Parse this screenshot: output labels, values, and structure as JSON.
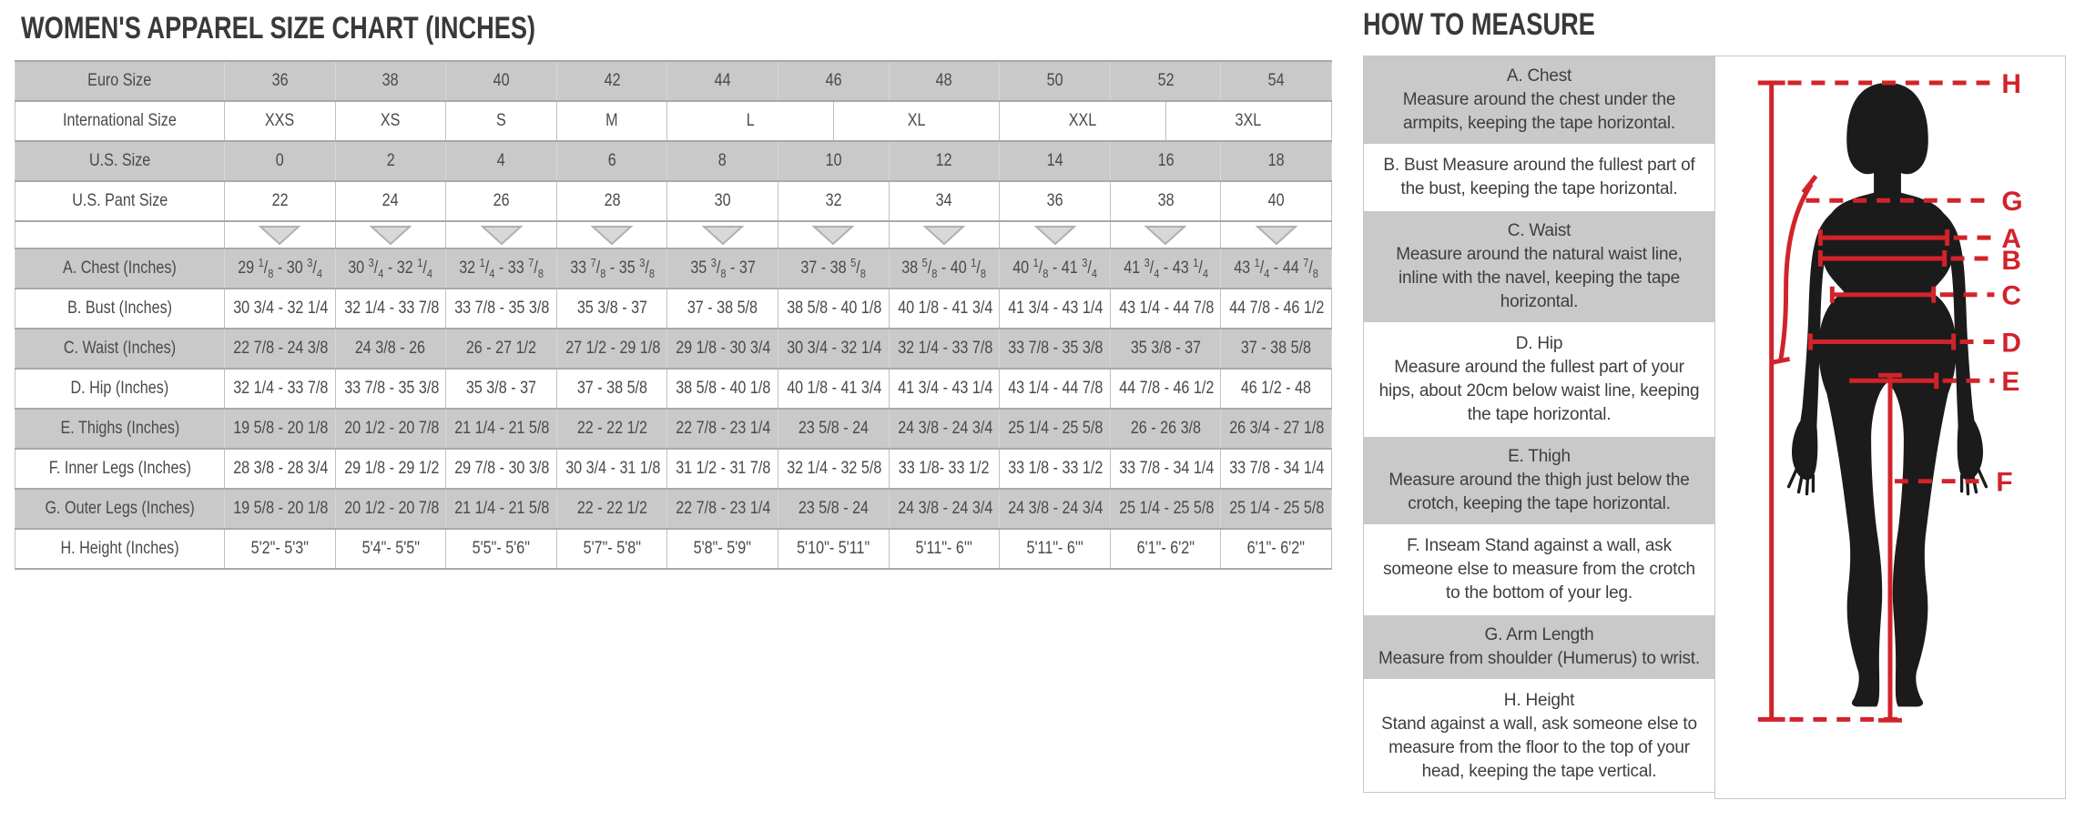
{
  "colors": {
    "row_gray": "#c9c9c9",
    "border_gray": "#a9a9a9",
    "accent_red": "#d2232a",
    "silhouette_black": "#1b1b1b",
    "text_dark": "#3e3e3e"
  },
  "size_chart": {
    "title": "WOMEN'S APPAREL SIZE CHART (INCHES)",
    "rows": [
      {
        "label": "Euro Size",
        "type": "data",
        "shade": "gray",
        "values": [
          "36",
          "38",
          "40",
          "42",
          "44",
          "46",
          "48",
          "50",
          "52",
          "54"
        ]
      },
      {
        "label": "International Size",
        "type": "data",
        "shade": "white",
        "values": [
          "XXS",
          "XS",
          "S",
          "M",
          "L",
          "XL",
          "XXL",
          "3XL"
        ],
        "spans": [
          2,
          2,
          2,
          2,
          3,
          3,
          3,
          3
        ]
      },
      {
        "label": "U.S. Size",
        "type": "data",
        "shade": "gray",
        "values": [
          "0",
          "2",
          "4",
          "6",
          "8",
          "10",
          "12",
          "14",
          "16",
          "18"
        ]
      },
      {
        "label": "U.S. Pant Size",
        "type": "data",
        "shade": "white",
        "values": [
          "22",
          "24",
          "26",
          "28",
          "30",
          "32",
          "34",
          "36",
          "38",
          "40"
        ]
      },
      {
        "label": "",
        "type": "arrows",
        "shade": "white",
        "arrow_count": 10
      },
      {
        "label": "A. Chest (Inches)",
        "type": "data",
        "shade": "gray",
        "fractions": true,
        "values": [
          "29 1/8 - 30 3/4",
          "30 3/4 - 32 1/4",
          "32 1/4 - 33 7/8",
          "33 7/8 - 35 3/8",
          "35 3/8 - 37",
          "37 - 38 5/8",
          "38 5/8 - 40 1/8",
          "40 1/8 - 41 3/4",
          "41 3/4 - 43 1/4",
          "43 1/4 - 44 7/8"
        ]
      },
      {
        "label": "B. Bust (Inches)",
        "type": "data",
        "shade": "white",
        "values": [
          "30 3/4 - 32 1/4",
          "32 1/4 - 33 7/8",
          "33 7/8 - 35 3/8",
          "35 3/8 - 37",
          "37 - 38 5/8",
          "38 5/8 - 40 1/8",
          "40 1/8 - 41 3/4",
          "41 3/4 - 43 1/4",
          "43 1/4 - 44 7/8",
          "44 7/8 - 46 1/2"
        ]
      },
      {
        "label": "C. Waist (Inches)",
        "type": "data",
        "shade": "gray",
        "values": [
          "22 7/8 - 24 3/8",
          "24 3/8 - 26",
          "26 - 27 1/2",
          "27 1/2 - 29 1/8",
          "29 1/8 - 30 3/4",
          "30 3/4 - 32 1/4",
          "32 1/4 - 33 7/8",
          "33 7/8 - 35 3/8",
          "35 3/8 - 37",
          "37 - 38 5/8"
        ]
      },
      {
        "label": "D. Hip (Inches)",
        "type": "data",
        "shade": "white",
        "values": [
          "32 1/4 - 33 7/8",
          "33 7/8 - 35 3/8",
          "35 3/8 - 37",
          "37 - 38 5/8",
          "38 5/8 - 40 1/8",
          "40 1/8 - 41 3/4",
          "41 3/4 - 43 1/4",
          "43 1/4 - 44 7/8",
          "44 7/8 - 46 1/2",
          "46 1/2 - 48"
        ]
      },
      {
        "label": "E. Thighs (Inches)",
        "type": "data",
        "shade": "gray",
        "values": [
          "19 5/8 - 20 1/8",
          "20 1/2 - 20 7/8",
          "21 1/4 - 21 5/8",
          "22 - 22 1/2",
          "22 7/8 - 23 1/4",
          "23 5/8 - 24",
          "24 3/8 - 24 3/4",
          "25 1/4 - 25 5/8",
          "26 - 26 3/8",
          "26 3/4 - 27 1/8"
        ]
      },
      {
        "label": "F. Inner Legs (Inches)",
        "type": "data",
        "shade": "white",
        "values": [
          "28 3/8 - 28 3/4",
          "29 1/8 - 29 1/2",
          "29 7/8 - 30 3/8",
          "30 3/4 - 31 1/8",
          "31 1/2 - 31 7/8",
          "32 1/4 - 32 5/8",
          "33 1/8- 33 1/2",
          "33 1/8 - 33 1/2",
          "33 7/8 - 34 1/4",
          "33 7/8 - 34 1/4"
        ]
      },
      {
        "label": "G. Outer Legs (Inches)",
        "type": "data",
        "shade": "gray",
        "values": [
          "19 5/8 - 20 1/8",
          "20 1/2 - 20 7/8",
          "21 1/4 - 21 5/8",
          "22 - 22 1/2",
          "22 7/8 - 23 1/4",
          "23 5/8 - 24",
          "24 3/8 - 24 3/4",
          "24 3/8 - 24 3/4",
          "25 1/4 - 25 5/8",
          "25 1/4 - 25 5/8"
        ]
      },
      {
        "label": "H. Height (Inches)",
        "type": "data",
        "shade": "white",
        "values": [
          "5'2\"- 5'3\"",
          "5'4\"- 5'5\"",
          "5'5\"- 5'6\"",
          "5'7\"- 5'8\"",
          "5'8\"- 5'9\"",
          "5'10\"- 5'11\"",
          "5'11\"- 6'\"",
          "5'11\"- 6'\"",
          "6'1\"- 6'2\"",
          "6'1\"- 6'2\""
        ]
      }
    ]
  },
  "how_to_measure": {
    "title": "HOW TO MEASURE",
    "items": [
      {
        "heading": "A. Chest",
        "text": "Measure around the chest under the armpits, keeping the tape horizontal.",
        "shade": "gray"
      },
      {
        "heading": "",
        "text": "B. Bust Measure around the fullest part of the bust, keeping the tape horizontal.",
        "shade": "white"
      },
      {
        "heading": "C. Waist",
        "text": "Measure around the natural waist line, inline with the navel, keeping the tape horizontal.",
        "shade": "gray"
      },
      {
        "heading": "D. Hip",
        "text": "Measure around the fullest part of your hips, about 20cm below waist line, keeping the tape horizontal.",
        "shade": "white"
      },
      {
        "heading": "E. Thigh",
        "text": "Measure around the thigh just below the crotch, keeping the tape horizontal.",
        "shade": "gray"
      },
      {
        "heading": "",
        "text": "F. Inseam Stand against a wall, ask someone else to measure from the crotch to the bottom of your leg.",
        "shade": "white"
      },
      {
        "heading": "G. Arm Length",
        "text": "Measure from shoulder (Humerus) to wrist.",
        "shade": "gray"
      },
      {
        "heading": "H. Height",
        "text": "Stand against a wall, ask someone else to measure from the floor to the top of your head, keeping the tape vertical.",
        "shade": "white"
      }
    ],
    "figure": {
      "labels": {
        "h": "H",
        "g": "G",
        "a": "A",
        "b": "B",
        "c": "C",
        "d": "D",
        "e": "E",
        "f": "F"
      }
    }
  }
}
